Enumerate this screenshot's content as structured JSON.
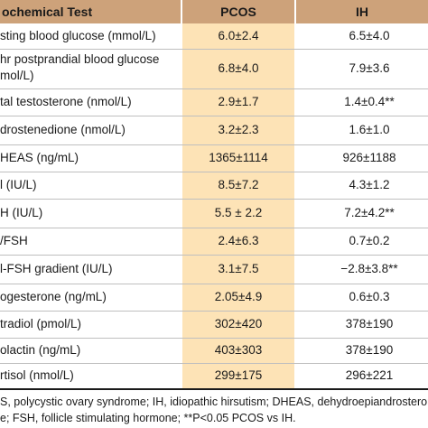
{
  "header": {
    "col1": "ochemical Test",
    "col2": "PCOS",
    "col3": "IH"
  },
  "rows": [
    {
      "test": "sting blood glucose (mmol/L)",
      "pcos": "6.0±2.4",
      "ih": "6.5±4.0"
    },
    {
      "test": "hr postprandial blood glucose\nmol/L)",
      "pcos": "6.8±4.0",
      "ih": "7.9±3.6"
    },
    {
      "test": "tal testosterone (nmol/L)",
      "pcos": "2.9±1.7",
      "ih": "1.4±0.4**"
    },
    {
      "test": "drostenedione (nmol/L)",
      "pcos": "3.2±2.3",
      "ih": "1.6±1.0"
    },
    {
      "test": "HEAS (ng/mL)",
      "pcos": "1365±1114",
      "ih": "926±1188"
    },
    {
      "test": "l (IU/L)",
      "pcos": "8.5±7.2",
      "ih": "4.3±1.2"
    },
    {
      "test": "H (IU/L)",
      "pcos": "5.5 ± 2.2",
      "ih": "7.2±4.2**"
    },
    {
      "test": "/FSH",
      "pcos": "2.4±6.3",
      "ih": "0.7±0.2"
    },
    {
      "test": "l-FSH gradient (IU/L)",
      "pcos": "3.1±7.5",
      "ih": "−2.8±3.8**"
    },
    {
      "test": "ogesterone (ng/mL)",
      "pcos": "2.05±4.9",
      "ih": "0.6±0.3"
    },
    {
      "test": "tradiol (pmol/L)",
      "pcos": "302±420",
      "ih": "378±190"
    },
    {
      "test": "olactin (ng/mL)",
      "pcos": "403±303",
      "ih": "378±190"
    },
    {
      "test": "rtisol (nmol/L)",
      "pcos": "299±175",
      "ih": "296±221"
    }
  ],
  "footnotes": {
    "line1": "S, polycystic ovary syndrome; IH, idiopathic hirsutism; DHEAS, dehydroepiandrosterone sulfate; LH, luteini",
    "line2": "e; FSH, follicle stimulating hormone; **P<0.05 PCOS vs IH."
  }
}
